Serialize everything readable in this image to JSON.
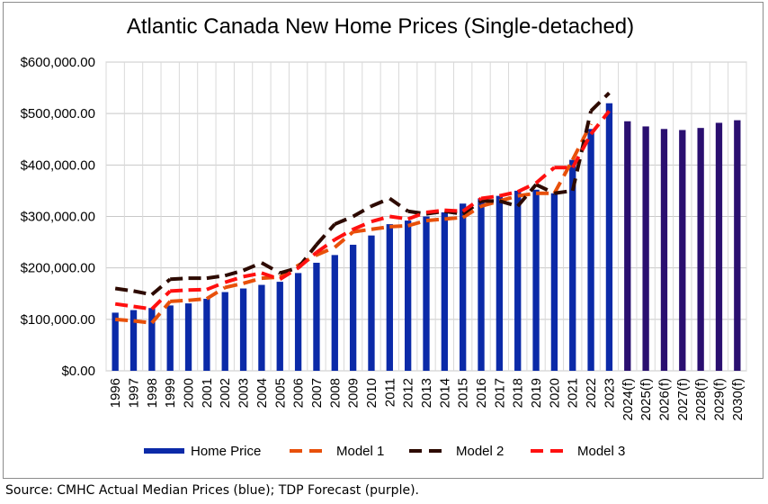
{
  "chart_data": {
    "type": "bar",
    "title": "Atlantic Canada New Home Prices (Single-detached)",
    "categories": [
      "1996",
      "1997",
      "1998",
      "1999",
      "2000",
      "2001",
      "2002",
      "2003",
      "2004",
      "2005",
      "2006",
      "2007",
      "2008",
      "2009",
      "2010",
      "2011",
      "2012",
      "2013",
      "2014",
      "2015",
      "2016",
      "2017",
      "2018",
      "2019",
      "2020",
      "2021",
      "2022",
      "2023",
      "2024(f)",
      "2025(f)",
      "2026(f)",
      "2027(f)",
      "2028(f)",
      "2029(f)",
      "2030(f)"
    ],
    "y_tick_labels": [
      "$0.00",
      "$100,000.00",
      "$200,000.00",
      "$300,000.00",
      "$400,000.00",
      "$500,000.00",
      "$600,000.00"
    ],
    "ylim": [
      0,
      600000
    ],
    "grid": "horizontal",
    "legend_position": "bottom",
    "series": [
      {
        "name": "Home Price",
        "kind": "bar",
        "color": "#0b2aa8",
        "values": [
          113000,
          118000,
          122000,
          127000,
          131000,
          140000,
          153000,
          160000,
          167000,
          173000,
          190000,
          210000,
          225000,
          245000,
          263000,
          285000,
          292000,
          300000,
          308000,
          325000,
          335000,
          340000,
          350000,
          352000,
          345000,
          410000,
          470000,
          520000,
          485000,
          475000,
          470000,
          468000,
          472000,
          482000,
          487000
        ]
      },
      {
        "name": "Model 1",
        "kind": "line",
        "color": "#e8500a",
        "dash": "long",
        "values": [
          100000,
          97000,
          93000,
          135000,
          137000,
          140000,
          162000,
          170000,
          180000,
          182000,
          205000,
          225000,
          240000,
          270000,
          275000,
          280000,
          282000,
          292000,
          295000,
          298000,
          320000,
          330000,
          340000,
          345000,
          345000,
          410000,
          480000,
          null,
          null,
          null,
          null,
          null,
          null,
          null,
          null
        ]
      },
      {
        "name": "Model 2",
        "kind": "line",
        "color": "#2d0a00",
        "dash": "long",
        "values": [
          160000,
          155000,
          148000,
          178000,
          180000,
          180000,
          185000,
          195000,
          210000,
          190000,
          200000,
          245000,
          285000,
          300000,
          320000,
          335000,
          310000,
          305000,
          310000,
          305000,
          330000,
          330000,
          320000,
          362000,
          345000,
          350000,
          505000,
          540000,
          null,
          null,
          null,
          null,
          null,
          null,
          null
        ]
      },
      {
        "name": "Model 3",
        "kind": "line",
        "color": "#ff1010",
        "dash": "long",
        "values": [
          130000,
          125000,
          120000,
          155000,
          157000,
          158000,
          172000,
          183000,
          190000,
          178000,
          200000,
          230000,
          255000,
          275000,
          290000,
          300000,
          295000,
          308000,
          312000,
          310000,
          335000,
          340000,
          348000,
          365000,
          395000,
          395000,
          460000,
          505000,
          null,
          null,
          null,
          null,
          null,
          null,
          null
        ]
      }
    ]
  },
  "source_note": "Source: CMHC Actual Median Prices (blue); TDP Forecast (purple).",
  "forecast_bar_color": "#2a0f70"
}
